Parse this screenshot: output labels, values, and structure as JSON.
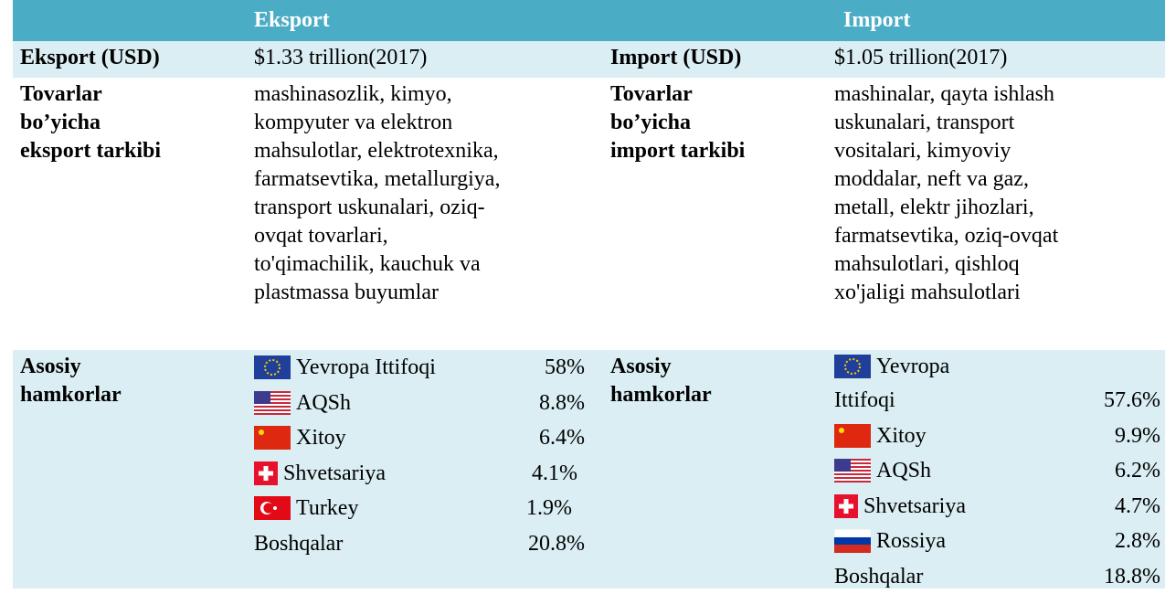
{
  "header": {
    "export": "Eksport",
    "import": "Import"
  },
  "export": {
    "value_label": "Eksport (USD)",
    "value": "$1.33 trillion(2017)",
    "composition_label": [
      "Tovarlar",
      "bo’yicha",
      "eksport tarkibi"
    ],
    "composition": [
      "mashinasozlik, kimyo,",
      "kompyuter va elektron",
      "mahsulotlar, elektrotexnika,",
      "farmatsevtika, metallurgiya,",
      "transport uskunalari, oziq-",
      "ovqat tovarlari,",
      "to'qimachilik, kauchuk va",
      "plastmassa buyumlar"
    ],
    "partners_label": [
      "Asosiy",
      "hamkorlar"
    ],
    "partners": [
      {
        "name": "Yevropa Ittifoqi",
        "share": "58%"
      },
      {
        "name": "AQSh",
        "share": "8.8%"
      },
      {
        "name": "Xitoy",
        "share": "6.4%"
      },
      {
        "name": "Shvetsariya",
        "share": "4.1%"
      },
      {
        "name": "Turkey",
        "share": "1.9%"
      },
      {
        "name": "Boshqalar",
        "share": "20.8%"
      }
    ]
  },
  "import": {
    "value_label": "Import (USD)",
    "value": "$1.05 trillion(2017)",
    "composition_label": [
      "Tovarlar",
      "bo’yicha",
      "import tarkibi"
    ],
    "composition": [
      "mashinalar, qayta ishlash",
      "uskunalari, transport",
      "vositalari, kimyoviy",
      "moddalar, neft va gaz,",
      "metall, elektr jihozlari,",
      "farmatsevtika, oziq-ovqat",
      "mahsulotlari, qishloq",
      "xo'jaligi mahsulotlari"
    ],
    "partners_label": [
      "Asosiy",
      "hamkorlar"
    ],
    "partners": [
      {
        "name": [
          "Yevropa",
          "Ittifoqi"
        ],
        "share": "57.6%"
      },
      {
        "name": "Xitoy",
        "share": "9.9%"
      },
      {
        "name": "AQSh",
        "share": "6.2%"
      },
      {
        "name": "Shvetsariya",
        "share": "4.7%"
      },
      {
        "name": "Rossiya",
        "share": "2.8%"
      },
      {
        "name": "Boshqalar",
        "share": "18.8%"
      }
    ]
  }
}
